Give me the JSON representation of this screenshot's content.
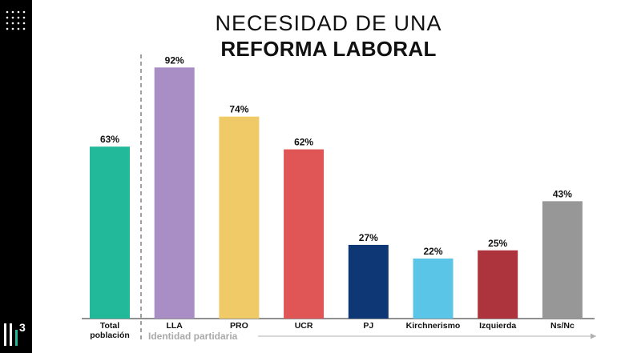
{
  "header": {
    "title_line1": "NECESIDAD DE UNA",
    "title_line2": "REFORMA LABORAL"
  },
  "brand": {
    "logo_icon": "bars-3-logo-icon",
    "logo_text": "3",
    "dots_icon": "dot-grid-icon"
  },
  "chart_data": {
    "type": "bar",
    "title": "NECESIDAD DE UNA REFORMA LABORAL",
    "xlabel": "Identidad partidaria",
    "ylabel": "",
    "ylim": [
      0,
      100
    ],
    "unit": "%",
    "categories": [
      "Total población",
      "LLA",
      "PRO",
      "UCR",
      "PJ",
      "Kirchnerismo",
      "Izquierda",
      "Ns/Nc"
    ],
    "category_lines": [
      [
        "Total",
        "población"
      ],
      [
        "LLA"
      ],
      [
        "PRO"
      ],
      [
        "UCR"
      ],
      [
        "PJ"
      ],
      [
        "Kirchnerismo"
      ],
      [
        "Izquierda"
      ],
      [
        "Ns/Nc"
      ]
    ],
    "values": [
      63,
      92,
      74,
      62,
      27,
      22,
      25,
      43
    ],
    "labels": [
      "63%",
      "92%",
      "74%",
      "62%",
      "27%",
      "22%",
      "25%",
      "43%"
    ],
    "colors": [
      "#22b99a",
      "#a98ec6",
      "#efca66",
      "#e05556",
      "#0d3775",
      "#5ac5e6",
      "#ad333c",
      "#979797"
    ],
    "grid": false,
    "group_separator_after": "Total población"
  }
}
